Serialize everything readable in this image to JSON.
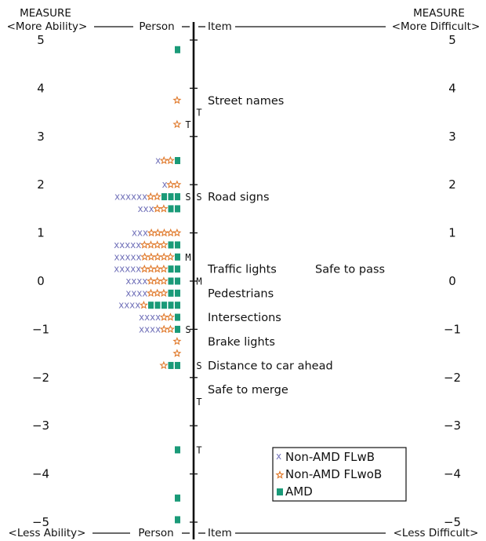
{
  "chart_data": {
    "type": "scatter",
    "subtype": "wright-map",
    "header": {
      "measure_label": "MEASURE",
      "more_ability": "<More Ability>",
      "more_difficult": "<More Difficult>",
      "less_ability": "<Less Ability>",
      "less_difficult": "<Less Difficult>",
      "person": "Person",
      "item": "Item"
    },
    "ylim": [
      -5,
      5
    ],
    "y_ticks": [
      5,
      4,
      3,
      2,
      1,
      0,
      -1,
      -2,
      -3,
      -4,
      -5
    ],
    "y_tick_labels": [
      "5",
      "4",
      "3",
      "2",
      "1",
      "0",
      "−1",
      "−2",
      "−3",
      "−4",
      "−5"
    ],
    "series": [
      {
        "name": "Non-AMD FLwB",
        "symbol": "x",
        "color": "#6f6fb8"
      },
      {
        "name": "Non-AMD FLwoB",
        "symbol": "star",
        "color": "#e07a2c"
      },
      {
        "name": "AMD",
        "symbol": "square",
        "color": "#1a9a78"
      }
    ],
    "person_rows": [
      {
        "y": 4.8,
        "x": 0,
        "star": 0,
        "amd": 1
      },
      {
        "y": 3.75,
        "x": 0,
        "star": 1,
        "amd": 0
      },
      {
        "y": 3.25,
        "x": 0,
        "star": 1,
        "amd": 0
      },
      {
        "y": 2.5,
        "x": 1,
        "star": 2,
        "amd": 1
      },
      {
        "y": 2.0,
        "x": 1,
        "star": 2,
        "amd": 0
      },
      {
        "y": 1.75,
        "x": 6,
        "star": 2,
        "amd": 3
      },
      {
        "y": 1.5,
        "x": 3,
        "star": 2,
        "amd": 2
      },
      {
        "y": 1.0,
        "x": 3,
        "star": 5,
        "amd": 0
      },
      {
        "y": 0.75,
        "x": 5,
        "star": 4,
        "amd": 2
      },
      {
        "y": 0.5,
        "x": 5,
        "star": 5,
        "amd": 1
      },
      {
        "y": 0.25,
        "x": 5,
        "star": 4,
        "amd": 2
      },
      {
        "y": 0.0,
        "x": 4,
        "star": 3,
        "amd": 2
      },
      {
        "y": -0.25,
        "x": 4,
        "star": 3,
        "amd": 2
      },
      {
        "y": -0.5,
        "x": 4,
        "star": 1,
        "amd": 5
      },
      {
        "y": -0.75,
        "x": 4,
        "star": 2,
        "amd": 1
      },
      {
        "y": -1.0,
        "x": 4,
        "star": 2,
        "amd": 1
      },
      {
        "y": -1.25,
        "x": 0,
        "star": 1,
        "amd": 0
      },
      {
        "y": -1.5,
        "x": 0,
        "star": 1,
        "amd": 0
      },
      {
        "y": -1.75,
        "x": 0,
        "star": 1,
        "amd": 2
      },
      {
        "y": -3.5,
        "x": 0,
        "star": 0,
        "amd": 1
      },
      {
        "y": -4.5,
        "x": 0,
        "star": 0,
        "amd": 1
      },
      {
        "y": -4.95,
        "x": 0,
        "star": 0,
        "amd": 1
      }
    ],
    "person_markers": [
      {
        "label": "M",
        "y": 0.5
      },
      {
        "label": "S",
        "y": 1.75
      },
      {
        "label": "S",
        "y": -1.0
      },
      {
        "label": "T",
        "y": 3.25
      }
    ],
    "item_markers": [
      {
        "label": "T",
        "y": 3.5
      },
      {
        "label": "S",
        "y": 1.75
      },
      {
        "label": "M",
        "y": 0.0
      },
      {
        "label": "S",
        "y": -1.75
      },
      {
        "label": "T",
        "y": -2.5
      },
      {
        "label": "T",
        "y": -3.5
      }
    ],
    "items": [
      {
        "label": "Street names",
        "y": 3.75
      },
      {
        "label": "Road signs",
        "y": 1.75
      },
      {
        "label": "Traffic lights",
        "y": 0.25
      },
      {
        "label": "Safe to pass",
        "y": 0.25
      },
      {
        "label": "Pedestrians",
        "y": -0.25
      },
      {
        "label": "Intersections",
        "y": -0.75
      },
      {
        "label": "Brake lights",
        "y": -1.25
      },
      {
        "label": "Distance to car ahead",
        "y": -1.75
      },
      {
        "label": "Safe to merge",
        "y": -2.25
      }
    ]
  }
}
